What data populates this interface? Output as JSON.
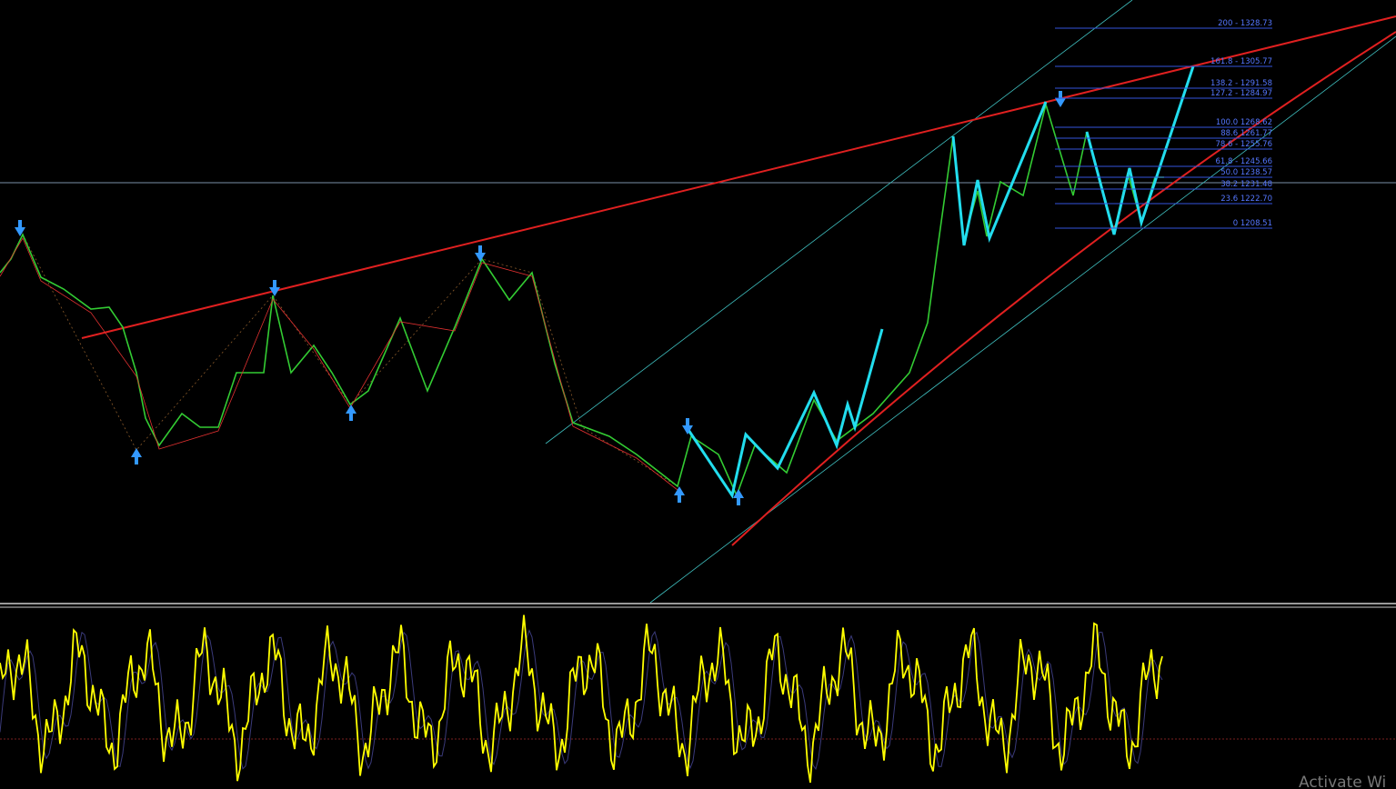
{
  "fib_levels": [
    "200 - 1328.73",
    "161.8 -  1305.77",
    "138.2 - 1291.58",
    "127.2 - 1284.97",
    "100.0 1268.62",
    "88.6 1261.77",
    "78.6 - 1255.76",
    "61.8 - 1245.66",
    "50.0 1238.57",
    "38.2 1231.48",
    "23.6 1222.70",
    "0 1208.51"
  ],
  "watermark": "Activate Wi"
}
